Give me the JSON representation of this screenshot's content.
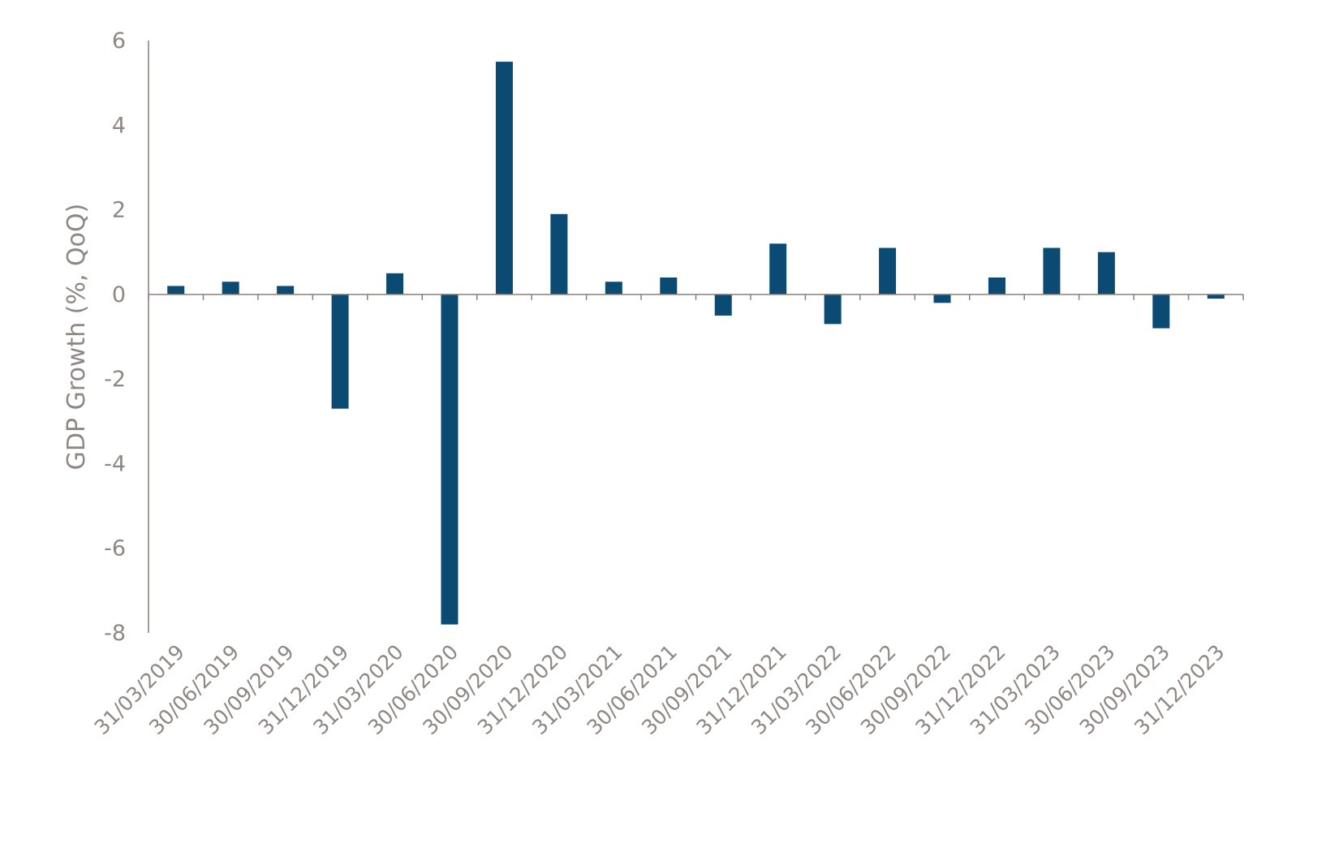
{
  "chart_data": {
    "type": "bar",
    "title": "",
    "xlabel": "",
    "ylabel": "GDP Growth (%, QoQ)",
    "ylim": [
      -8,
      6
    ],
    "yticks": [
      "6",
      "4",
      "2",
      "0",
      "-2",
      "-4",
      "-6",
      "-8"
    ],
    "grid": false,
    "legend": "none",
    "bar_color": "#0b4a73",
    "categories": [
      "31/03/2019",
      "30/06/2019",
      "30/09/2019",
      "31/12/2019",
      "31/03/2020",
      "30/06/2020",
      "30/09/2020",
      "31/12/2020",
      "31/03/2021",
      "30/06/2021",
      "30/09/2021",
      "31/12/2021",
      "31/03/2022",
      "30/06/2022",
      "30/09/2022",
      "31/12/2022",
      "31/03/2023",
      "30/06/2023",
      "30/09/2023",
      "31/12/2023"
    ],
    "values": [
      0.2,
      0.3,
      0.2,
      -2.7,
      0.5,
      -7.8,
      5.5,
      1.9,
      0.3,
      0.4,
      -0.5,
      1.2,
      -0.7,
      1.1,
      -0.2,
      0.4,
      1.1,
      1.0,
      -0.8,
      -0.1
    ]
  }
}
